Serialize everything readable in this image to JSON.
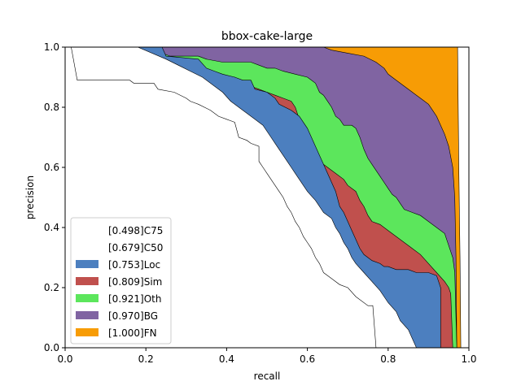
{
  "chart_data": {
    "type": "area",
    "title": "bbox-cake-large",
    "xlabel": "recall",
    "ylabel": "precision",
    "xlim": [
      0,
      1
    ],
    "ylim": [
      0,
      1
    ],
    "xticks": [
      "0.0",
      "0.2",
      "0.4",
      "0.6",
      "0.8",
      "1.0"
    ],
    "yticks": [
      "0.0",
      "0.2",
      "0.4",
      "0.6",
      "0.8",
      "1.0"
    ],
    "grid": false,
    "legend_position": "lower-left",
    "series": [
      {
        "name": "[0.498]C75",
        "color": "#ffffff",
        "points": [
          [
            0.0,
            1.0
          ],
          [
            0.015,
            1.0
          ],
          [
            0.03,
            0.89
          ],
          [
            0.16,
            0.89
          ],
          [
            0.17,
            0.88
          ],
          [
            0.22,
            0.88
          ],
          [
            0.23,
            0.86
          ],
          [
            0.27,
            0.85
          ],
          [
            0.3,
            0.83
          ],
          [
            0.31,
            0.82
          ],
          [
            0.33,
            0.81
          ],
          [
            0.36,
            0.79
          ],
          [
            0.38,
            0.77
          ],
          [
            0.4,
            0.76
          ],
          [
            0.41,
            0.755
          ],
          [
            0.42,
            0.75
          ],
          [
            0.43,
            0.7
          ],
          [
            0.45,
            0.69
          ],
          [
            0.46,
            0.68
          ],
          [
            0.48,
            0.67
          ],
          [
            0.48,
            0.62
          ],
          [
            0.49,
            0.6
          ],
          [
            0.5,
            0.58
          ],
          [
            0.51,
            0.56
          ],
          [
            0.52,
            0.54
          ],
          [
            0.53,
            0.52
          ],
          [
            0.54,
            0.5
          ],
          [
            0.55,
            0.47
          ],
          [
            0.56,
            0.45
          ],
          [
            0.57,
            0.42
          ],
          [
            0.58,
            0.4
          ],
          [
            0.59,
            0.37
          ],
          [
            0.6,
            0.35
          ],
          [
            0.61,
            0.33
          ],
          [
            0.62,
            0.3
          ],
          [
            0.63,
            0.28
          ],
          [
            0.64,
            0.25
          ],
          [
            0.66,
            0.23
          ],
          [
            0.68,
            0.21
          ],
          [
            0.7,
            0.2
          ],
          [
            0.72,
            0.17
          ],
          [
            0.75,
            0.14
          ],
          [
            0.762,
            0.14
          ],
          [
            0.77,
            0.0
          ]
        ]
      },
      {
        "name": "[0.679]C50",
        "color": "#ffffff",
        "points": [
          [
            0.0,
            1.0
          ],
          [
            0.18,
            1.0
          ],
          [
            0.25,
            0.96
          ],
          [
            0.28,
            0.94
          ],
          [
            0.31,
            0.92
          ],
          [
            0.34,
            0.9
          ],
          [
            0.37,
            0.87
          ],
          [
            0.39,
            0.85
          ],
          [
            0.41,
            0.82
          ],
          [
            0.43,
            0.8
          ],
          [
            0.45,
            0.78
          ],
          [
            0.47,
            0.76
          ],
          [
            0.49,
            0.74
          ],
          [
            0.51,
            0.7
          ],
          [
            0.52,
            0.68
          ],
          [
            0.53,
            0.66
          ],
          [
            0.54,
            0.64
          ],
          [
            0.55,
            0.62
          ],
          [
            0.56,
            0.6
          ],
          [
            0.57,
            0.58
          ],
          [
            0.58,
            0.56
          ],
          [
            0.59,
            0.54
          ],
          [
            0.6,
            0.52
          ],
          [
            0.62,
            0.49
          ],
          [
            0.63,
            0.47
          ],
          [
            0.64,
            0.45
          ],
          [
            0.66,
            0.43
          ],
          [
            0.67,
            0.4
          ],
          [
            0.68,
            0.38
          ],
          [
            0.69,
            0.35
          ],
          [
            0.7,
            0.33
          ],
          [
            0.71,
            0.3
          ],
          [
            0.72,
            0.28
          ],
          [
            0.74,
            0.25
          ],
          [
            0.76,
            0.22
          ],
          [
            0.78,
            0.19
          ],
          [
            0.8,
            0.15
          ],
          [
            0.82,
            0.12
          ],
          [
            0.83,
            0.09
          ],
          [
            0.85,
            0.06
          ],
          [
            0.86,
            0.03
          ],
          [
            0.87,
            0.0
          ]
        ]
      },
      {
        "name": "[0.753]Loc",
        "color": "#4c7fbf",
        "points": [
          [
            0.0,
            1.0
          ],
          [
            0.24,
            1.0
          ],
          [
            0.25,
            0.97
          ],
          [
            0.33,
            0.96
          ],
          [
            0.35,
            0.93
          ],
          [
            0.37,
            0.92
          ],
          [
            0.39,
            0.91
          ],
          [
            0.42,
            0.9
          ],
          [
            0.44,
            0.89
          ],
          [
            0.46,
            0.89
          ],
          [
            0.47,
            0.86
          ],
          [
            0.5,
            0.85
          ],
          [
            0.52,
            0.83
          ],
          [
            0.53,
            0.81
          ],
          [
            0.56,
            0.79
          ],
          [
            0.58,
            0.77
          ],
          [
            0.6,
            0.73
          ],
          [
            0.61,
            0.7
          ],
          [
            0.62,
            0.67
          ],
          [
            0.63,
            0.64
          ],
          [
            0.64,
            0.61
          ],
          [
            0.65,
            0.58
          ],
          [
            0.66,
            0.55
          ],
          [
            0.67,
            0.52
          ],
          [
            0.68,
            0.47
          ],
          [
            0.69,
            0.45
          ],
          [
            0.7,
            0.42
          ],
          [
            0.71,
            0.39
          ],
          [
            0.72,
            0.36
          ],
          [
            0.73,
            0.33
          ],
          [
            0.74,
            0.31
          ],
          [
            0.76,
            0.29
          ],
          [
            0.78,
            0.28
          ],
          [
            0.79,
            0.27
          ],
          [
            0.8,
            0.27
          ],
          [
            0.82,
            0.26
          ],
          [
            0.83,
            0.26
          ],
          [
            0.85,
            0.26
          ],
          [
            0.87,
            0.25
          ],
          [
            0.89,
            0.25
          ],
          [
            0.9,
            0.25
          ],
          [
            0.92,
            0.24
          ],
          [
            0.93,
            0.2
          ],
          [
            0.93,
            0.0
          ]
        ]
      },
      {
        "name": "[0.809]Sim",
        "color": "#c0504d",
        "points": [
          [
            0.0,
            1.0
          ],
          [
            0.18,
            1.0
          ],
          [
            0.2,
            0.97
          ],
          [
            0.22,
            0.96
          ],
          [
            0.24,
            0.96
          ],
          [
            0.25,
            0.95
          ],
          [
            0.28,
            0.94
          ],
          [
            0.32,
            0.93
          ],
          [
            0.35,
            0.92
          ],
          [
            0.37,
            0.91
          ],
          [
            0.4,
            0.9
          ],
          [
            0.42,
            0.9
          ],
          [
            0.44,
            0.88
          ],
          [
            0.46,
            0.87
          ],
          [
            0.48,
            0.86
          ],
          [
            0.5,
            0.85
          ],
          [
            0.52,
            0.84
          ],
          [
            0.54,
            0.83
          ],
          [
            0.56,
            0.82
          ],
          [
            0.57,
            0.8
          ],
          [
            0.58,
            0.76
          ],
          [
            0.59,
            0.72
          ],
          [
            0.6,
            0.69
          ],
          [
            0.61,
            0.66
          ],
          [
            0.62,
            0.64
          ],
          [
            0.63,
            0.62
          ],
          [
            0.65,
            0.6
          ],
          [
            0.67,
            0.58
          ],
          [
            0.69,
            0.56
          ],
          [
            0.7,
            0.54
          ],
          [
            0.72,
            0.52
          ],
          [
            0.73,
            0.49
          ],
          [
            0.74,
            0.47
          ],
          [
            0.75,
            0.44
          ],
          [
            0.76,
            0.42
          ],
          [
            0.78,
            0.41
          ],
          [
            0.8,
            0.39
          ],
          [
            0.82,
            0.37
          ],
          [
            0.84,
            0.35
          ],
          [
            0.86,
            0.33
          ],
          [
            0.88,
            0.31
          ],
          [
            0.9,
            0.28
          ],
          [
            0.92,
            0.25
          ],
          [
            0.94,
            0.22
          ],
          [
            0.95,
            0.2
          ],
          [
            0.955,
            0.18
          ],
          [
            0.96,
            0.0
          ]
        ]
      },
      {
        "name": "[0.921]Oth",
        "color": "#5ce65c",
        "points": [
          [
            0.0,
            1.0
          ],
          [
            0.2,
            1.0
          ],
          [
            0.24,
            0.98
          ],
          [
            0.26,
            0.97
          ],
          [
            0.33,
            0.97
          ],
          [
            0.35,
            0.96
          ],
          [
            0.39,
            0.95
          ],
          [
            0.46,
            0.95
          ],
          [
            0.48,
            0.94
          ],
          [
            0.5,
            0.93
          ],
          [
            0.52,
            0.93
          ],
          [
            0.54,
            0.92
          ],
          [
            0.57,
            0.91
          ],
          [
            0.6,
            0.9
          ],
          [
            0.62,
            0.88
          ],
          [
            0.63,
            0.85
          ],
          [
            0.64,
            0.84
          ],
          [
            0.65,
            0.82
          ],
          [
            0.66,
            0.8
          ],
          [
            0.67,
            0.77
          ],
          [
            0.68,
            0.76
          ],
          [
            0.69,
            0.74
          ],
          [
            0.71,
            0.74
          ],
          [
            0.72,
            0.73
          ],
          [
            0.73,
            0.7
          ],
          [
            0.74,
            0.66
          ],
          [
            0.75,
            0.63
          ],
          [
            0.76,
            0.61
          ],
          [
            0.77,
            0.59
          ],
          [
            0.78,
            0.57
          ],
          [
            0.79,
            0.55
          ],
          [
            0.8,
            0.53
          ],
          [
            0.81,
            0.51
          ],
          [
            0.82,
            0.5
          ],
          [
            0.83,
            0.48
          ],
          [
            0.84,
            0.46
          ],
          [
            0.86,
            0.45
          ],
          [
            0.88,
            0.44
          ],
          [
            0.9,
            0.42
          ],
          [
            0.92,
            0.4
          ],
          [
            0.94,
            0.38
          ],
          [
            0.95,
            0.34
          ],
          [
            0.96,
            0.3
          ],
          [
            0.965,
            0.25
          ],
          [
            0.97,
            0.0
          ]
        ]
      },
      {
        "name": "[0.970]BG",
        "color": "#8064a2",
        "points": [
          [
            0.0,
            1.0
          ],
          [
            0.64,
            1.0
          ],
          [
            0.66,
            0.99
          ],
          [
            0.7,
            0.98
          ],
          [
            0.74,
            0.97
          ],
          [
            0.77,
            0.95
          ],
          [
            0.79,
            0.93
          ],
          [
            0.8,
            0.91
          ],
          [
            0.82,
            0.89
          ],
          [
            0.84,
            0.87
          ],
          [
            0.86,
            0.85
          ],
          [
            0.88,
            0.83
          ],
          [
            0.9,
            0.81
          ],
          [
            0.91,
            0.79
          ],
          [
            0.92,
            0.77
          ],
          [
            0.93,
            0.74
          ],
          [
            0.94,
            0.71
          ],
          [
            0.95,
            0.67
          ],
          [
            0.96,
            0.6
          ],
          [
            0.965,
            0.5
          ],
          [
            0.968,
            0.3
          ],
          [
            0.97,
            0.0
          ]
        ]
      },
      {
        "name": "[1.000]FN",
        "color": "#f79c05",
        "points": [
          [
            0.0,
            1.0
          ],
          [
            0.972,
            1.0
          ],
          [
            0.975,
            0.6
          ],
          [
            0.978,
            0.3
          ],
          [
            0.98,
            0.0
          ]
        ]
      }
    ]
  }
}
